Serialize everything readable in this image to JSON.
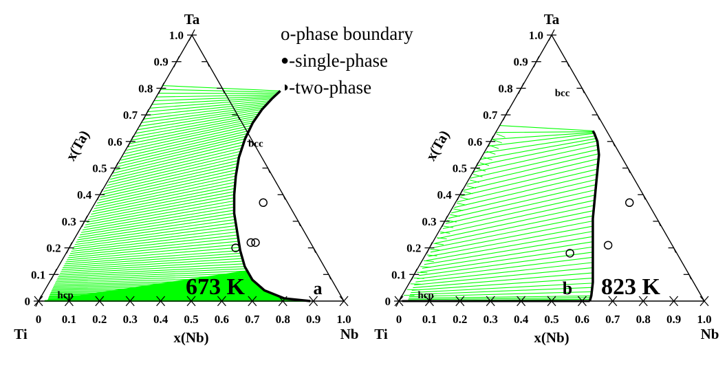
{
  "legend": {
    "boundary": "o-phase boundary",
    "single": "-single-phase",
    "two": "-two-phase"
  },
  "colors": {
    "tieline": "#00ff00",
    "frame": "#000000"
  },
  "chart_data": [
    {
      "type": "ternary",
      "panel": "a",
      "temperature": "673 K",
      "corners": {
        "left": "Ti",
        "right": "Nb",
        "top": "Ta"
      },
      "xlabel": "x(Nb)",
      "ylabel": "x(Ta)",
      "ticks": [
        "0",
        "0.1",
        "0.2",
        "0.3",
        "0.4",
        "0.5",
        "0.6",
        "0.7",
        "0.8",
        "0.9",
        "1.0"
      ],
      "phase_labels": {
        "upper": "bcc",
        "lower": "hcp"
      },
      "boundary": [
        {
          "nb": 0.89,
          "ta": 0.0
        },
        {
          "nb": 0.8,
          "ta": 0.01
        },
        {
          "nb": 0.72,
          "ta": 0.04
        },
        {
          "nb": 0.66,
          "ta": 0.08
        },
        {
          "nb": 0.61,
          "ta": 0.13
        },
        {
          "nb": 0.565,
          "ta": 0.19
        },
        {
          "nb": 0.52,
          "ta": 0.26
        },
        {
          "nb": 0.475,
          "ta": 0.33
        },
        {
          "nb": 0.44,
          "ta": 0.4
        },
        {
          "nb": 0.41,
          "ta": 0.47
        },
        {
          "nb": 0.385,
          "ta": 0.54
        },
        {
          "nb": 0.37,
          "ta": 0.61
        },
        {
          "nb": 0.365,
          "ta": 0.67
        },
        {
          "nb": 0.37,
          "ta": 0.72
        },
        {
          "nb": 0.382,
          "ta": 0.76
        },
        {
          "nb": 0.395,
          "ta": 0.79
        }
      ],
      "hcp_boundary": [
        {
          "nb": 0.01,
          "ta": 0.0
        },
        {
          "nb": 0.89,
          "ta": 0.0
        }
      ],
      "tielines": {
        "hcp_end": [
          {
            "nb": 0.02,
            "ta": 0.0
          },
          {
            "nb": 0.04,
            "ta": 0.0
          },
          {
            "nb": 0.06,
            "ta": 0.0
          },
          {
            "nb": 0.08,
            "ta": 0.0
          },
          {
            "nb": 0.1,
            "ta": 0.0
          }
        ],
        "count": 80
      },
      "points": [
        {
          "nb": 0.55,
          "ta": 0.37,
          "type": "open"
        },
        {
          "nb": 0.545,
          "ta": 0.2,
          "type": "open"
        },
        {
          "nb": 0.585,
          "ta": 0.22,
          "type": "open"
        },
        {
          "nb": 0.6,
          "ta": 0.22,
          "type": "open"
        }
      ]
    },
    {
      "type": "ternary",
      "panel": "b",
      "temperature": "823 K",
      "corners": {
        "left": "Ti",
        "right": "Nb",
        "top": "Ta"
      },
      "xlabel": "x(Nb)",
      "ylabel": "x(Ta)",
      "ticks": [
        "0",
        "0.1",
        "0.2",
        "0.3",
        "0.4",
        "0.5",
        "0.6",
        "0.7",
        "0.8",
        "0.9",
        "1.0"
      ],
      "phase_labels": {
        "upper": "bcc",
        "lower": "hcp"
      },
      "boundary": [
        {
          "nb": 0.625,
          "ta": 0.0
        },
        {
          "nb": 0.62,
          "ta": 0.02
        },
        {
          "nb": 0.6,
          "ta": 0.07
        },
        {
          "nb": 0.57,
          "ta": 0.13
        },
        {
          "nb": 0.54,
          "ta": 0.19
        },
        {
          "nb": 0.51,
          "ta": 0.25
        },
        {
          "nb": 0.48,
          "ta": 0.31
        },
        {
          "nb": 0.455,
          "ta": 0.37
        },
        {
          "nb": 0.43,
          "ta": 0.43
        },
        {
          "nb": 0.405,
          "ta": 0.49
        },
        {
          "nb": 0.38,
          "ta": 0.55
        },
        {
          "nb": 0.35,
          "ta": 0.6
        },
        {
          "nb": 0.325,
          "ta": 0.63
        },
        {
          "nb": 0.315,
          "ta": 0.64
        }
      ],
      "points": [
        {
          "nb": 0.57,
          "ta": 0.37,
          "type": "open"
        },
        {
          "nb": 0.58,
          "ta": 0.21,
          "type": "open"
        },
        {
          "nb": 0.47,
          "ta": 0.18,
          "type": "open"
        }
      ]
    }
  ]
}
